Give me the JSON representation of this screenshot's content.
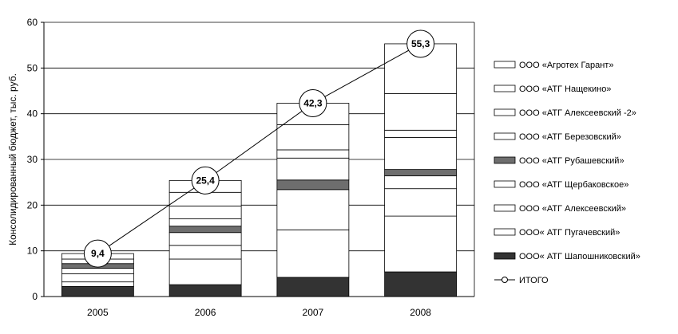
{
  "chart_data": {
    "type": "bar",
    "stacked": true,
    "categories": [
      "2005",
      "2006",
      "2007",
      "2008"
    ],
    "ylabel": "Консолидированный бюджет, тыс. руб.",
    "ylim": [
      0,
      60
    ],
    "yticks": [
      "0",
      "10",
      "20",
      "30",
      "40",
      "50",
      "60"
    ],
    "grid": "horizontal",
    "legend_position": "right",
    "series": [
      {
        "name": "ООО« АТГ Шапошниковский»",
        "color": "#333333",
        "values": [
          2.2,
          2.6,
          4.2,
          5.4
        ]
      },
      {
        "name": "ООО« АТГ Пугачевский»",
        "color": "#ffffff",
        "values": [
          1.0,
          5.6,
          10.4,
          12.2
        ]
      },
      {
        "name": "ООО «АТГ Алексеевский»",
        "color": "#ffffff",
        "values": [
          1.8,
          3.0,
          8.8,
          6.0
        ]
      },
      {
        "name": "ООО «АТГ Щербаковское»",
        "color": "#ffffff",
        "values": [
          1.2,
          2.8,
          0.0,
          2.8
        ]
      },
      {
        "name": "ООО «АТГ Рубашевский»",
        "color": "#6e6e6e",
        "values": [
          1.0,
          1.4,
          2.1,
          1.4
        ]
      },
      {
        "name": "ООО «АТГ Березовский»",
        "color": "#ffffff",
        "values": [
          1.0,
          1.6,
          4.8,
          7.0
        ]
      },
      {
        "name": "ООО «АТГ Алексеевский -2»",
        "color": "#ffffff",
        "values": [
          0.0,
          2.8,
          1.8,
          1.6
        ]
      },
      {
        "name": "ООО «АТГ Нащекино»",
        "color": "#ffffff",
        "values": [
          0.0,
          3.0,
          5.5,
          8.0
        ]
      },
      {
        "name": "ООО «Агротех Гарант»",
        "color": "#ffffff",
        "values": [
          1.2,
          2.6,
          4.7,
          10.9
        ]
      }
    ],
    "total": {
      "name": "ИТОГО",
      "values": [
        9.4,
        25.4,
        42.3,
        55.3
      ],
      "labels": [
        "9,4",
        "25,4",
        "42,3",
        "55,3"
      ]
    }
  }
}
